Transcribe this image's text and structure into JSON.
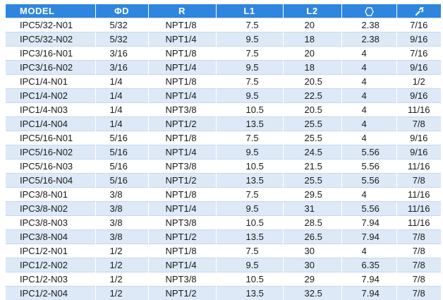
{
  "table": {
    "header_color": "#2e86de",
    "alt_row_color": "#dde9f7",
    "headers": {
      "model": "MODEL",
      "diameter": "ΦD",
      "thread": "R",
      "l1": "L1",
      "l2": "L2",
      "hex_icon": "hexagon-icon",
      "wrench_icon": "wrench-icon"
    },
    "rows": [
      {
        "model": "IPC5/32-N01",
        "d": "5/32",
        "r": "NPT1/8",
        "l1": "7.5",
        "l2": "20",
        "hex": "2.38",
        "wrench": "7/16"
      },
      {
        "model": "IPC5/32-N02",
        "d": "5/32",
        "r": "NPT1/4",
        "l1": "9.5",
        "l2": "18",
        "hex": "2.38",
        "wrench": "9/16"
      },
      {
        "model": "IPC3/16-N01",
        "d": "3/16",
        "r": "NPT1/8",
        "l1": "7.5",
        "l2": "20",
        "hex": "4",
        "wrench": "7/16"
      },
      {
        "model": "IPC3/16-N02",
        "d": "3/16",
        "r": "NPT1/4",
        "l1": "9.5",
        "l2": "18",
        "hex": "4",
        "wrench": "9/16"
      },
      {
        "model": "IPC1/4-N01",
        "d": "1/4",
        "r": "NPT1/8",
        "l1": "7.5",
        "l2": "20.5",
        "hex": "4",
        "wrench": "1/2"
      },
      {
        "model": "IPC1/4-N02",
        "d": "1/4",
        "r": "NPT1/4",
        "l1": "9.5",
        "l2": "22.5",
        "hex": "4",
        "wrench": "9/16"
      },
      {
        "model": "IPC1/4-N03",
        "d": "1/4",
        "r": "NPT3/8",
        "l1": "10.5",
        "l2": "20.5",
        "hex": "4",
        "wrench": "11/16"
      },
      {
        "model": "IPC1/4-N04",
        "d": "1/4",
        "r": "NPT1/2",
        "l1": "13.5",
        "l2": "25.5",
        "hex": "4",
        "wrench": "7/8"
      },
      {
        "model": "IPC5/16-N01",
        "d": "5/16",
        "r": "NPT1/8",
        "l1": "7.5",
        "l2": "25.5",
        "hex": "4",
        "wrench": "9/16"
      },
      {
        "model": "IPC5/16-N02",
        "d": "5/16",
        "r": "NPT1/4",
        "l1": "9.5",
        "l2": "24.5",
        "hex": "5.56",
        "wrench": "9/16"
      },
      {
        "model": "IPC5/16-N03",
        "d": "5/16",
        "r": "NPT3/8",
        "l1": "10.5",
        "l2": "21.5",
        "hex": "5.56",
        "wrench": "11/16"
      },
      {
        "model": "IPC5/16-N04",
        "d": "5/16",
        "r": "NPT1/2",
        "l1": "13.5",
        "l2": "25.5",
        "hex": "5.56",
        "wrench": "7/8"
      },
      {
        "model": "IPC3/8-N01",
        "d": "3/8",
        "r": "NPT1/8",
        "l1": "7.5",
        "l2": "29.5",
        "hex": "4",
        "wrench": "11/16"
      },
      {
        "model": "IPC3/8-N02",
        "d": "3/8",
        "r": "NPT1/4",
        "l1": "9.5",
        "l2": "31",
        "hex": "5.56",
        "wrench": "11/16"
      },
      {
        "model": "IPC3/8-N03",
        "d": "3/8",
        "r": "NPT3/8",
        "l1": "10.5",
        "l2": "28.5",
        "hex": "7.94",
        "wrench": "11/16"
      },
      {
        "model": "IPC3/8-N04",
        "d": "3/8",
        "r": "NPT1/2",
        "l1": "13.5",
        "l2": "26.5",
        "hex": "7.94",
        "wrench": "7/8"
      },
      {
        "model": "IPC1/2-N01",
        "d": "1/2",
        "r": "NPT1/8",
        "l1": "7.5",
        "l2": "30",
        "hex": "4",
        "wrench": "7/8"
      },
      {
        "model": "IPC1/2-N02",
        "d": "1/2",
        "r": "NPT1/4",
        "l1": "9.5",
        "l2": "30",
        "hex": "6.35",
        "wrench": "7/8"
      },
      {
        "model": "IPC1/2-N03",
        "d": "1/2",
        "r": "NPT3/8",
        "l1": "10.5",
        "l2": "29",
        "hex": "7.94",
        "wrench": "7/8"
      },
      {
        "model": "IPC1/2-N04",
        "d": "1/2",
        "r": "NPT1/2",
        "l1": "13.5",
        "l2": "32.5",
        "hex": "7.94",
        "wrench": "7/8"
      }
    ]
  }
}
